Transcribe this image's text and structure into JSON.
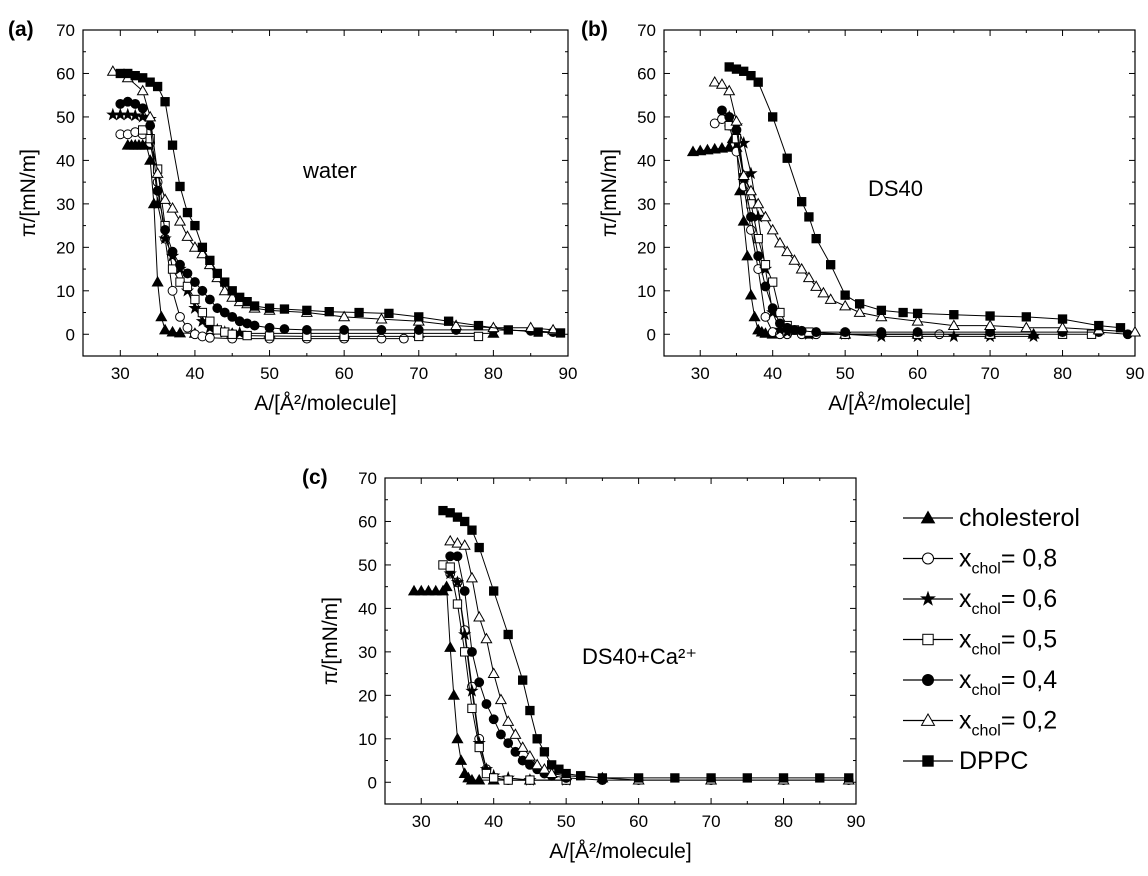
{
  "chart_data": [
    {
      "type": "line",
      "panel_label": "(a)",
      "annotation": "water",
      "xlabel": "A/[Å²/molecule]",
      "ylabel": "π/[mN/m]",
      "xlim": [
        25,
        90
      ],
      "ylim": [
        -5,
        70
      ],
      "xticks": [
        30,
        40,
        50,
        60,
        70,
        80,
        90
      ],
      "yticks": [
        0,
        10,
        20,
        30,
        40,
        50,
        60,
        70
      ],
      "grid": false,
      "series": [
        {
          "name": "cholesterol",
          "marker": "triangle-filled",
          "x": [
            31,
            31.5,
            32,
            32.5,
            33,
            33.5,
            34,
            34.5,
            35,
            35.5,
            36,
            37,
            38,
            40,
            45,
            50,
            60,
            70,
            80
          ],
          "y": [
            43.5,
            43.5,
            43.5,
            43.5,
            43.5,
            43.5,
            40,
            30,
            12,
            4,
            1,
            0.5,
            0.3,
            0.2,
            0.2,
            0.2,
            0.2,
            0.2,
            0.2
          ]
        },
        {
          "name": "x_chol= 0,8",
          "marker": "circle-open",
          "x": [
            30,
            31,
            32,
            33,
            34,
            35,
            36,
            37,
            38,
            39,
            40,
            41,
            42,
            45,
            50,
            55,
            60,
            65,
            68
          ],
          "y": [
            46,
            46,
            46.5,
            46,
            44,
            35,
            22,
            10,
            4,
            1.5,
            0,
            -0.5,
            -0.8,
            -1,
            -1,
            -1,
            -1,
            -1,
            -1
          ]
        },
        {
          "name": "x_chol= 0,6",
          "marker": "star-filled",
          "x": [
            29,
            30,
            31,
            32,
            33,
            34,
            35,
            36,
            37,
            38,
            39,
            40,
            41,
            42,
            43,
            44,
            46
          ],
          "y": [
            50.5,
            50.5,
            50.5,
            50.3,
            50,
            49.5,
            30,
            22,
            18,
            15,
            10,
            6,
            3,
            1.5,
            1,
            0.5,
            0.3
          ]
        },
        {
          "name": "x_chol= 0,5",
          "marker": "square-open",
          "x": [
            33,
            34,
            35,
            36,
            37,
            38,
            39,
            40,
            41,
            42,
            43,
            44,
            45,
            47,
            50,
            55,
            60,
            70,
            78
          ],
          "y": [
            47,
            45,
            38,
            25,
            15,
            12,
            11,
            8,
            5,
            3,
            1,
            0.5,
            0,
            -0.3,
            -0.4,
            -0.5,
            -0.5,
            -0.5,
            -0.5
          ]
        },
        {
          "name": "x_chol= 0,4",
          "marker": "circle-filled",
          "x": [
            30,
            31,
            32,
            33,
            34,
            35,
            36,
            37,
            38,
            39,
            40,
            41,
            42,
            43,
            44,
            45,
            46,
            47,
            48,
            50,
            52,
            55,
            60,
            65,
            70,
            75,
            80,
            85,
            88
          ],
          "y": [
            53,
            53.5,
            53,
            52,
            48,
            33,
            24,
            19,
            16,
            14,
            12,
            10,
            8,
            6,
            5,
            4,
            3,
            2.5,
            2,
            1.5,
            1.2,
            1,
            1,
            1,
            1,
            1,
            1,
            0.8,
            0.5
          ]
        },
        {
          "name": "x_chol= 0,2",
          "marker": "triangle-open",
          "x": [
            29,
            31,
            33,
            34,
            35,
            36,
            37,
            38,
            39,
            40,
            41,
            42,
            43,
            44,
            45,
            46,
            47,
            48,
            50,
            55,
            60,
            65,
            70,
            75,
            80,
            85,
            88
          ],
          "y": [
            60.5,
            59,
            56,
            50,
            37,
            31,
            29,
            26,
            22.5,
            20,
            18.5,
            16,
            13,
            10,
            8.5,
            7.5,
            7,
            6,
            5.5,
            5,
            4,
            3.5,
            3,
            2,
            1.5,
            1.5,
            1
          ]
        },
        {
          "name": "DPPC",
          "marker": "square-filled",
          "x": [
            30,
            31,
            32,
            33,
            34,
            35,
            36,
            37,
            38,
            39,
            40,
            41,
            42,
            43,
            44,
            45,
            46,
            47,
            48,
            50,
            52,
            55,
            58,
            62,
            66,
            70,
            74,
            78,
            82,
            86,
            89
          ],
          "y": [
            60,
            60,
            59.5,
            59,
            58,
            57,
            53.5,
            43.5,
            34,
            28,
            25,
            20,
            17,
            14,
            12,
            10,
            8.5,
            7.5,
            6.5,
            6,
            5.8,
            5.5,
            5.2,
            5,
            4.8,
            4,
            3,
            2,
            1,
            0.5,
            0.3
          ]
        }
      ]
    },
    {
      "type": "line",
      "panel_label": "(b)",
      "annotation": "DS40",
      "xlabel": "A/[Å²/molecule]",
      "ylabel": "π/[mN/m]",
      "xlim": [
        25,
        90
      ],
      "ylim": [
        -5,
        70
      ],
      "xticks": [
        30,
        40,
        50,
        60,
        70,
        80,
        90
      ],
      "yticks": [
        0,
        10,
        20,
        30,
        40,
        50,
        60,
        70
      ],
      "grid": false,
      "series": [
        {
          "name": "cholesterol",
          "marker": "triangle-filled",
          "x": [
            29,
            30,
            31,
            32,
            33,
            34,
            34.5,
            35,
            35.5,
            36,
            36.5,
            37,
            37.5,
            38,
            38.5,
            39,
            40,
            45,
            50,
            60,
            70,
            76
          ],
          "y": [
            42,
            42.2,
            42.4,
            42.6,
            42.8,
            43,
            45,
            43,
            33,
            26,
            18,
            9,
            4,
            1,
            0.5,
            0.2,
            0,
            0,
            0,
            0,
            0,
            0
          ]
        },
        {
          "name": "x_chol= 0,8",
          "marker": "circle-open",
          "x": [
            32,
            33,
            34,
            35,
            36,
            37,
            38,
            39,
            40,
            41,
            42,
            44,
            46,
            50,
            55,
            60,
            63
          ],
          "y": [
            48.5,
            49.5,
            48,
            42,
            34,
            24,
            15,
            4,
            0.5,
            0,
            0,
            0,
            0,
            0,
            0,
            0,
            0
          ]
        },
        {
          "name": "x_chol= 0,6",
          "marker": "star-filled",
          "x": [
            34,
            35,
            36,
            37,
            38,
            39,
            40,
            41,
            42,
            45,
            50,
            55,
            60,
            65,
            70,
            76
          ],
          "y": [
            50,
            48,
            44,
            37,
            27,
            15,
            5,
            1,
            0.5,
            0,
            0,
            -0.5,
            -0.5,
            -0.5,
            -0.5,
            -0.5
          ]
        },
        {
          "name": "x_chol= 0,5",
          "marker": "square-open",
          "x": [
            34,
            35,
            36,
            37,
            38,
            39,
            40,
            41,
            42,
            43,
            45,
            50,
            60,
            70,
            80,
            84
          ],
          "y": [
            48,
            45,
            36,
            30,
            22,
            16,
            12,
            5,
            2,
            1,
            0.5,
            0,
            0,
            0,
            0,
            0
          ]
        },
        {
          "name": "x_chol= 0,4",
          "marker": "circle-filled",
          "x": [
            33,
            34,
            35,
            36,
            37,
            38,
            39,
            40,
            41,
            42,
            43,
            44,
            46,
            50,
            55,
            60,
            70,
            80,
            85,
            89
          ],
          "y": [
            51.5,
            50,
            47,
            36,
            27,
            18,
            11,
            6,
            2.5,
            1.5,
            1,
            0.8,
            0.5,
            0.5,
            0.5,
            0.5,
            0.5,
            0.5,
            0.5,
            0
          ]
        },
        {
          "name": "x_chol= 0,2",
          "marker": "triangle-open",
          "x": [
            32,
            33,
            34,
            35,
            36,
            37,
            38,
            39,
            40,
            41,
            42,
            43,
            44,
            45,
            46,
            47,
            48,
            50,
            52,
            55,
            60,
            65,
            70,
            75,
            80,
            85,
            90
          ],
          "y": [
            58,
            57.5,
            56,
            49,
            36.5,
            33,
            30,
            27,
            24,
            21,
            19,
            17,
            15,
            13,
            11,
            9.5,
            8,
            6.5,
            5,
            4,
            3,
            2,
            2,
            1.5,
            1.5,
            1,
            0.5
          ]
        },
        {
          "name": "DPPC",
          "marker": "square-filled",
          "x": [
            34,
            35,
            36,
            37,
            38,
            40,
            42,
            44,
            45,
            46,
            48,
            50,
            52,
            55,
            58,
            60,
            65,
            70,
            75,
            80,
            85,
            88
          ],
          "y": [
            61.5,
            61,
            60.5,
            59.5,
            58,
            50,
            40.5,
            30.5,
            27,
            22,
            16,
            9,
            7,
            5.5,
            5,
            4.8,
            4.5,
            4.2,
            4,
            3.5,
            2,
            1.5
          ]
        }
      ]
    },
    {
      "type": "line",
      "panel_label": "(c)",
      "annotation": "DS40+Ca²⁺",
      "xlabel": "A/[Å²/molecule]",
      "ylabel": "π/[mN/m]",
      "xlim": [
        25,
        90
      ],
      "ylim": [
        -5,
        70
      ],
      "xticks": [
        30,
        40,
        50,
        60,
        70,
        80,
        90
      ],
      "yticks": [
        0,
        10,
        20,
        30,
        40,
        50,
        60,
        70
      ],
      "grid": false,
      "series": [
        {
          "name": "cholesterol",
          "marker": "triangle-filled",
          "x": [
            29,
            30,
            31,
            32,
            33,
            33.5,
            34,
            34.5,
            35,
            35.5,
            36,
            36.5,
            37,
            38,
            40,
            45
          ],
          "y": [
            44,
            44,
            44,
            44,
            44,
            45,
            31,
            20,
            10,
            5,
            2,
            1,
            0.5,
            0.5,
            0.5,
            0.5
          ]
        },
        {
          "name": "x_chol= 0,8",
          "marker": "circle-open",
          "x": [
            34,
            35,
            36,
            37,
            38,
            39,
            40,
            42,
            45,
            50
          ],
          "y": [
            48,
            46,
            35,
            22,
            10,
            3,
            1,
            0.5,
            0.5,
            0.5
          ]
        },
        {
          "name": "x_chol= 0,6",
          "marker": "star-filled",
          "x": [
            34,
            35,
            36,
            37,
            38,
            39,
            40,
            42,
            45,
            50
          ],
          "y": [
            48,
            46,
            34,
            21,
            9,
            3,
            1.5,
            1,
            0.5,
            0.5
          ]
        },
        {
          "name": "x_chol= 0,5",
          "marker": "square-open",
          "x": [
            33,
            34,
            35,
            36,
            37,
            38,
            39,
            40,
            42,
            45,
            50
          ],
          "y": [
            50,
            49.5,
            41,
            30,
            17,
            8,
            2,
            1,
            0.5,
            0.5,
            0.5
          ]
        },
        {
          "name": "x_chol= 0,4",
          "marker": "circle-filled",
          "x": [
            34,
            35,
            36,
            37,
            38,
            39,
            40,
            41,
            42,
            43,
            44,
            45,
            46,
            47,
            48,
            50,
            55,
            60,
            70,
            80,
            89
          ],
          "y": [
            52,
            52,
            44,
            30,
            23,
            18,
            14.5,
            11,
            9,
            7,
            5,
            4,
            3,
            2,
            1.5,
            1,
            0.5,
            0.5,
            0.5,
            0.5,
            0.5
          ]
        },
        {
          "name": "x_chol= 0,2",
          "marker": "triangle-open",
          "x": [
            34,
            35,
            36,
            37,
            38,
            39,
            40,
            41,
            42,
            43,
            44,
            45,
            46,
            47,
            48,
            50,
            55,
            60,
            70,
            80,
            89
          ],
          "y": [
            55.5,
            55,
            54.5,
            47,
            38,
            33,
            25,
            19,
            14,
            11,
            8,
            6,
            4,
            3,
            2,
            1.5,
            1,
            0.5,
            0.5,
            0.5,
            0.5
          ]
        },
        {
          "name": "DPPC",
          "marker": "square-filled",
          "x": [
            33,
            34,
            35,
            36,
            37,
            38,
            40,
            42,
            44,
            45,
            46,
            47,
            48,
            49,
            50,
            52,
            55,
            60,
            65,
            70,
            75,
            80,
            85,
            89
          ],
          "y": [
            62.5,
            62,
            61,
            60,
            58,
            54,
            44,
            34,
            23.5,
            16.5,
            10,
            7,
            4,
            3,
            2,
            1.5,
            1,
            1,
            1,
            1,
            1,
            1,
            1,
            1
          ]
        }
      ]
    }
  ],
  "legend": {
    "items": [
      {
        "label": "cholesterol",
        "subscript": "",
        "suffix": "",
        "marker": "triangle-filled"
      },
      {
        "label": "x",
        "subscript": "chol",
        "suffix": "= 0,8",
        "marker": "circle-open"
      },
      {
        "label": "x",
        "subscript": "chol",
        "suffix": "= 0,6",
        "marker": "star-filled"
      },
      {
        "label": "x",
        "subscript": "chol",
        "suffix": "= 0,5",
        "marker": "square-open"
      },
      {
        "label": "x",
        "subscript": "chol",
        "suffix": "= 0,4",
        "marker": "circle-filled"
      },
      {
        "label": "x",
        "subscript": "chol",
        "suffix": "= 0,2",
        "marker": "triangle-open"
      },
      {
        "label": "DPPC",
        "subscript": "",
        "suffix": "",
        "marker": "square-filled"
      }
    ]
  },
  "colors": {
    "ink": "#000000",
    "background": "#ffffff"
  }
}
